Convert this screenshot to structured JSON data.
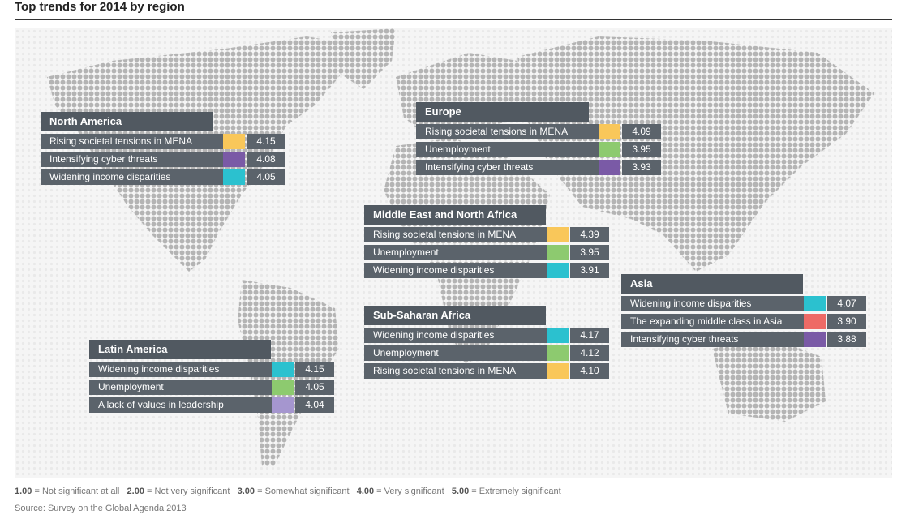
{
  "title": "Top trends for 2014 by region",
  "colors": {
    "Rising societal tensions in MENA": "#f9c75a",
    "Intensifying cyber threats": "#7a5aa6",
    "Widening income disparities": "#2bc1cf",
    "Unemployment": "#8dca6f",
    "The expanding middle class in Asia": "#ee6a66",
    "A lack of values in leadership": "#a596cf"
  },
  "chart_data": {
    "type": "table",
    "scale_min": 1,
    "scale_max": 5,
    "regions": [
      {
        "name": "North America",
        "trends": [
          {
            "label": "Rising societal tensions in MENA",
            "value": "4.15"
          },
          {
            "label": "Intensifying cyber threats",
            "value": "4.08"
          },
          {
            "label": "Widening income disparities",
            "value": "4.05"
          }
        ]
      },
      {
        "name": "Europe",
        "trends": [
          {
            "label": "Rising societal tensions in MENA",
            "value": "4.09"
          },
          {
            "label": "Unemployment",
            "value": "3.95"
          },
          {
            "label": "Intensifying cyber threats",
            "value": "3.93"
          }
        ]
      },
      {
        "name": "Middle East and North Africa",
        "trends": [
          {
            "label": "Rising societal tensions in MENA",
            "value": "4.39"
          },
          {
            "label": "Unemployment",
            "value": "3.95"
          },
          {
            "label": "Widening income disparities",
            "value": "3.91"
          }
        ]
      },
      {
        "name": "Asia",
        "trends": [
          {
            "label": "Widening income disparities",
            "value": "4.07"
          },
          {
            "label": "The expanding middle class in Asia",
            "value": "3.90"
          },
          {
            "label": "Intensifying cyber threats",
            "value": "3.88"
          }
        ]
      },
      {
        "name": "Sub-Saharan Africa",
        "trends": [
          {
            "label": "Widening income disparities",
            "value": "4.17"
          },
          {
            "label": "Unemployment",
            "value": "4.12"
          },
          {
            "label": "Rising societal tensions in MENA",
            "value": "4.10"
          }
        ]
      },
      {
        "name": "Latin America",
        "trends": [
          {
            "label": "Widening income disparities",
            "value": "4.15"
          },
          {
            "label": "Unemployment",
            "value": "4.05"
          },
          {
            "label": "A lack of values in leadership",
            "value": "4.04"
          }
        ]
      }
    ]
  },
  "legend": [
    {
      "value": "1.00",
      "text": "Not significant at all"
    },
    {
      "value": "2.00",
      "text": "Not very significant"
    },
    {
      "value": "3.00",
      "text": "Somewhat significant"
    },
    {
      "value": "4.00",
      "text": "Very significant"
    },
    {
      "value": "5.00",
      "text": "Extremely significant"
    }
  ],
  "source": "Source: Survey on the Global Agenda 2013"
}
